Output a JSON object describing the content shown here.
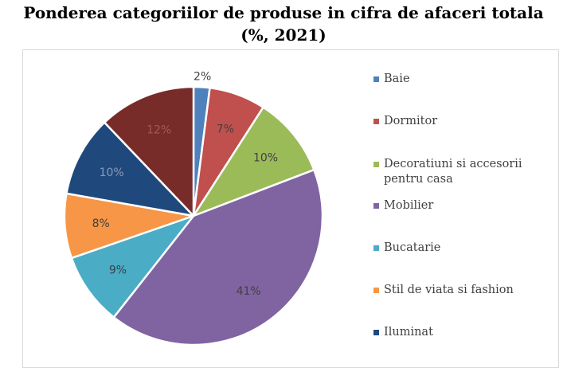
{
  "title_line1": "Ponderea categoriilor de produse in cifra de afaceri totala",
  "title_line2": "(%, 2021)",
  "chart_data": {
    "type": "pie",
    "title": "Ponderea categoriilor de produse in cifra de afaceri totala (%, 2021)",
    "unit": "%",
    "legend_position": "right",
    "slices": [
      {
        "label": "Baie",
        "value": 2,
        "display": "2%",
        "color": "#4f81bd"
      },
      {
        "label": "Dormitor",
        "value": 7,
        "display": "7%",
        "color": "#c0504d"
      },
      {
        "label": "Decoratiuni si accesorii pentru casa",
        "value": 10,
        "display": "10%",
        "color": "#9bbb59"
      },
      {
        "label": "Mobilier",
        "value": 41,
        "display": "41%",
        "color": "#8064a2"
      },
      {
        "label": "Bucatarie",
        "value": 9,
        "display": "9%",
        "color": "#4bacc6"
      },
      {
        "label": "Stil de viata si fashion",
        "value": 8,
        "display": "8%",
        "color": "#f79646"
      },
      {
        "label": "Iluminat",
        "value": 10,
        "display": "10%",
        "color": "#1f497d"
      },
      {
        "label": "",
        "value": 12,
        "display": "12%",
        "color": "#772c2a"
      }
    ]
  }
}
